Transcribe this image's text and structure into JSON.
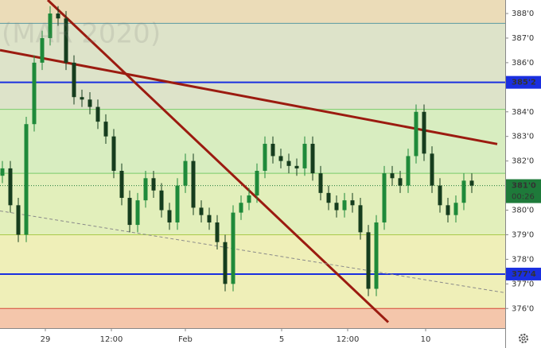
{
  "chart_data": {
    "type": "candlestick",
    "watermark": "(MAR 2020)",
    "x": [
      0,
      1,
      2,
      3,
      4,
      5,
      6,
      7,
      8,
      9,
      10,
      11,
      12,
      13,
      14,
      15,
      16,
      17,
      18,
      19,
      20,
      21,
      22,
      23,
      24,
      25,
      26,
      27,
      28,
      29,
      30,
      31,
      32,
      33,
      34,
      35,
      36,
      37,
      38,
      39,
      40,
      41,
      42,
      43,
      44,
      45,
      46,
      47,
      48,
      49,
      50,
      51,
      52,
      53,
      54,
      55,
      56,
      57,
      58,
      59
    ],
    "open": [
      381.4,
      381.7,
      380.2,
      379.0,
      383.5,
      386.0,
      387.0,
      388.0,
      387.8,
      386.0,
      384.6,
      384.5,
      384.2,
      383.6,
      383.0,
      381.6,
      380.5,
      379.4,
      380.4,
      381.3,
      380.8,
      380.0,
      379.5,
      381.0,
      382.0,
      380.1,
      379.8,
      379.5,
      378.7,
      377.0,
      379.9,
      380.3,
      380.6,
      381.6,
      382.7,
      382.2,
      382.0,
      381.8,
      381.7,
      382.7,
      381.5,
      380.7,
      380.3,
      380.0,
      380.4,
      380.2,
      379.1,
      376.8,
      379.5,
      381.5,
      381.3,
      381.0,
      382.2,
      384.0,
      382.3,
      381.0,
      380.2,
      379.8,
      380.3,
      381.2
    ],
    "high": [
      382.0,
      382.0,
      380.5,
      383.8,
      386.3,
      387.3,
      388.3,
      388.3,
      388.1,
      386.3,
      384.9,
      384.8,
      384.5,
      383.9,
      383.3,
      381.9,
      380.8,
      380.7,
      381.6,
      381.6,
      381.1,
      380.3,
      381.3,
      382.3,
      382.3,
      380.4,
      380.1,
      379.8,
      379.0,
      380.2,
      380.6,
      380.9,
      381.9,
      383.0,
      383.0,
      382.5,
      382.3,
      382.1,
      383.0,
      383.0,
      381.8,
      381.0,
      380.6,
      380.7,
      380.7,
      380.5,
      379.4,
      379.8,
      381.8,
      381.8,
      381.6,
      382.5,
      384.3,
      384.3,
      382.6,
      381.3,
      380.5,
      380.6,
      381.5,
      381.5
    ],
    "low": [
      381.1,
      379.9,
      378.7,
      378.7,
      383.2,
      385.7,
      386.7,
      387.5,
      385.7,
      384.3,
      384.2,
      383.9,
      383.3,
      382.7,
      381.3,
      380.2,
      379.1,
      379.1,
      380.1,
      380.5,
      379.7,
      379.2,
      379.2,
      380.7,
      379.8,
      379.5,
      379.2,
      378.4,
      376.7,
      376.7,
      379.6,
      380.0,
      380.3,
      381.3,
      381.9,
      381.7,
      381.5,
      381.4,
      381.4,
      381.2,
      380.4,
      380.0,
      379.7,
      379.7,
      379.9,
      378.8,
      376.5,
      376.5,
      379.2,
      381.0,
      380.7,
      380.7,
      381.9,
      382.0,
      380.7,
      379.9,
      379.5,
      379.5,
      380.0,
      380.7
    ],
    "close": [
      381.7,
      380.2,
      379.0,
      383.5,
      386.0,
      387.0,
      388.0,
      387.8,
      386.0,
      384.6,
      384.5,
      384.2,
      383.6,
      383.0,
      381.6,
      380.5,
      379.4,
      380.4,
      381.3,
      380.8,
      380.0,
      379.5,
      381.0,
      382.0,
      380.1,
      379.8,
      379.5,
      378.7,
      377.0,
      379.9,
      380.3,
      380.6,
      381.6,
      382.7,
      382.2,
      382.0,
      381.8,
      381.7,
      382.7,
      381.5,
      380.7,
      380.3,
      380.0,
      380.4,
      380.2,
      379.1,
      376.8,
      379.5,
      381.5,
      381.3,
      381.0,
      382.2,
      384.0,
      382.3,
      381.0,
      380.2,
      379.8,
      380.3,
      381.2,
      381.0
    ],
    "up_color": "#1f8a3a",
    "down_color": "#163d1e",
    "xlim": [
      -0.3,
      63.2
    ],
    "ylim": [
      375.2,
      388.55
    ],
    "xticks": [
      {
        "value": 5.4,
        "label": "29"
      },
      {
        "value": 13.7,
        "label": "12:00"
      },
      {
        "value": 23.0,
        "label": "Feb"
      },
      {
        "value": 35.1,
        "label": "5"
      },
      {
        "value": 43.4,
        "label": "12:00"
      },
      {
        "value": 53.2,
        "label": "10"
      }
    ],
    "yticks": [
      {
        "value": 388,
        "label": "388'0"
      },
      {
        "value": 387,
        "label": "387'0"
      },
      {
        "value": 386,
        "label": "386'0"
      },
      {
        "value": 384,
        "label": "384'0"
      },
      {
        "value": 383,
        "label": "383'0"
      },
      {
        "value": 382,
        "label": "382'0"
      },
      {
        "value": 380,
        "label": "380'0"
      },
      {
        "value": 379,
        "label": "379'0"
      },
      {
        "value": 378,
        "label": "378'0"
      },
      {
        "value": 377,
        "label": "377'0"
      },
      {
        "value": 376,
        "label": "376'0"
      }
    ],
    "bands": [
      {
        "from": 387.6,
        "to": 388.55,
        "color": "#ebdcb8"
      },
      {
        "from": 384.1,
        "to": 387.6,
        "color": "#dde3c9"
      },
      {
        "from": 381.5,
        "to": 384.1,
        "color": "#d8edc0"
      },
      {
        "from": 379.0,
        "to": 381.5,
        "color": "#e2efbb"
      },
      {
        "from": 376.0,
        "to": 379.0,
        "color": "#efefb8"
      },
      {
        "from": 375.2,
        "to": 376.0,
        "color": "#f4c6ab"
      }
    ],
    "levels": [
      {
        "value": 387.6,
        "color": "#5a9aa0"
      },
      {
        "value": 385.2,
        "color": "#1a2fe0",
        "label": "385'2"
      },
      {
        "value": 384.1,
        "color": "#7acb6a"
      },
      {
        "value": 381.5,
        "color": "#7acb6a"
      },
      {
        "value": 379.0,
        "color": "#a9c94a"
      },
      {
        "value": 377.4,
        "color": "#1a2fe0",
        "label": "377'4"
      },
      {
        "value": 376.0,
        "color": "#d44a3a"
      }
    ],
    "last_price": {
      "value": 381.0,
      "label": "381'0",
      "countdown": "00:26",
      "color": "#1e7a3a"
    },
    "trendlines": [
      {
        "x": [
          5.7,
          48.5
        ],
        "y": [
          388.55,
          375.44
        ],
        "color": "#9b1b10",
        "dashed": false
      },
      {
        "x": [
          -0.3,
          62.2
        ],
        "y": [
          386.51,
          382.69
        ],
        "color": "#9b1b10",
        "dashed": false
      },
      {
        "x": [
          -0.3,
          63.2
        ],
        "y": [
          379.97,
          376.64
        ],
        "color": "#8a8a8a",
        "dashed": true
      }
    ]
  }
}
